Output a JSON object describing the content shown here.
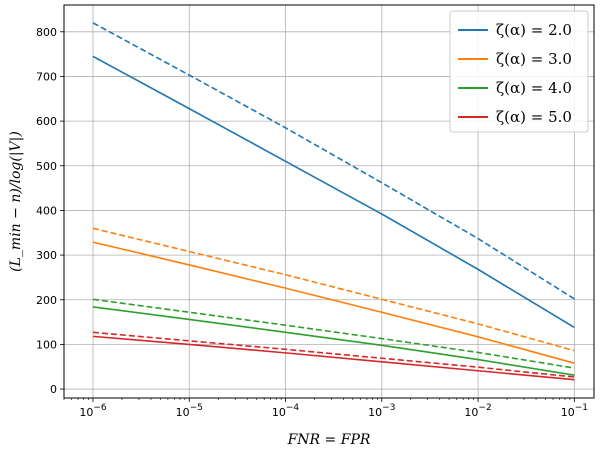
{
  "chart_data": {
    "type": "line",
    "x_scale": "log",
    "x_tick_labels": [
      "10^-6",
      "10^-5",
      "10^-4",
      "10^-3",
      "10^-2",
      "10^-1"
    ],
    "x_ticks": [
      1e-06,
      1e-05,
      0.0001,
      0.001,
      0.01,
      0.1
    ],
    "xlim": [
      5e-07,
      0.16
    ],
    "ylim": [
      -20,
      860
    ],
    "y_ticks": [
      0,
      100,
      200,
      300,
      400,
      500,
      600,
      700,
      800
    ],
    "xlabel": "FNR = FPR",
    "ylabel": "(L_min − n)/log(|V|)",
    "grid": true,
    "legend_position": "top-right",
    "x": [
      1e-06,
      1e-05,
      0.0001,
      0.001,
      0.01,
      0.1
    ],
    "series": [
      {
        "name": "ζ(α) = 2.0",
        "color": "#1f77b4",
        "style": "solid",
        "values": [
          745,
          628,
          510,
          392,
          268,
          138
        ]
      },
      {
        "name": "ζ(α) = 2.0",
        "color": "#1f77b4",
        "style": "dashed",
        "values": [
          820,
          703,
          585,
          462,
          337,
          202
        ]
      },
      {
        "name": "ζ(α) = 3.0",
        "color": "#ff7f0e",
        "style": "solid",
        "values": [
          329,
          278,
          226,
          172,
          117,
          58
        ]
      },
      {
        "name": "ζ(α) = 3.0",
        "color": "#ff7f0e",
        "style": "dashed",
        "values": [
          360,
          308,
          256,
          201,
          146,
          86
        ]
      },
      {
        "name": "ζ(α) = 4.0",
        "color": "#2ca02c",
        "style": "solid",
        "values": [
          184,
          156,
          127,
          98,
          66,
          31
        ]
      },
      {
        "name": "ζ(α) = 4.0",
        "color": "#2ca02c",
        "style": "dashed",
        "values": [
          201,
          172,
          143,
          113,
          82,
          47
        ]
      },
      {
        "name": "ζ(α) = 5.0",
        "color": "#d62728",
        "style": "solid",
        "values": [
          118,
          100,
          81,
          61,
          41,
          21
        ]
      },
      {
        "name": "ζ(α) = 5.0",
        "color": "#d62728",
        "style": "dashed",
        "values": [
          127,
          108,
          89,
          69,
          49,
          27
        ]
      }
    ],
    "legend": [
      {
        "label": "ζ(α) = 2.0",
        "color": "#1f77b4"
      },
      {
        "label": "ζ(α) = 3.0",
        "color": "#ff7f0e"
      },
      {
        "label": "ζ(α) = 4.0",
        "color": "#2ca02c"
      },
      {
        "label": "ζ(α) = 5.0",
        "color": "#d62728"
      }
    ]
  }
}
